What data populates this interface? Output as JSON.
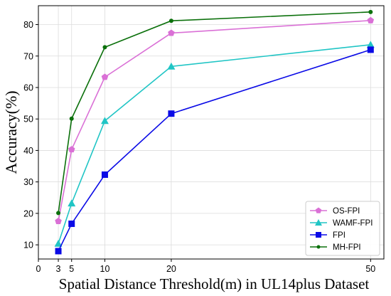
{
  "chart_data": {
    "type": "line",
    "title": "",
    "xlabel": "Spatial Distance Threshold(m) in UL14plus Dataset",
    "ylabel": "Accuracy(%)",
    "x": [
      3,
      5,
      10,
      20,
      50
    ],
    "xticks": [
      0,
      3,
      5,
      10,
      20,
      50
    ],
    "yticks": [
      10,
      20,
      30,
      40,
      50,
      60,
      70,
      80
    ],
    "xlim": [
      0,
      52
    ],
    "ylim": [
      5.5,
      86
    ],
    "grid": true,
    "legend_position": "bottom-right",
    "series": [
      {
        "name": "OS-FPI",
        "color": "#da70d6",
        "marker": "pentagon",
        "values": [
          17.5,
          40.3,
          63.3,
          77.3,
          81.3
        ]
      },
      {
        "name": "WAMF-FPI",
        "color": "#20c5c5",
        "marker": "triangle",
        "values": [
          10.4,
          23.2,
          49.4,
          66.7,
          73.6
        ]
      },
      {
        "name": "FPI",
        "color": "#0a0ae6",
        "marker": "square",
        "values": [
          8.0,
          16.7,
          32.3,
          51.7,
          72.0
        ]
      },
      {
        "name": "MH-FPI",
        "color": "#0b700b",
        "marker": "circle",
        "values": [
          20.1,
          50.1,
          72.8,
          81.2,
          84.0
        ]
      }
    ]
  }
}
